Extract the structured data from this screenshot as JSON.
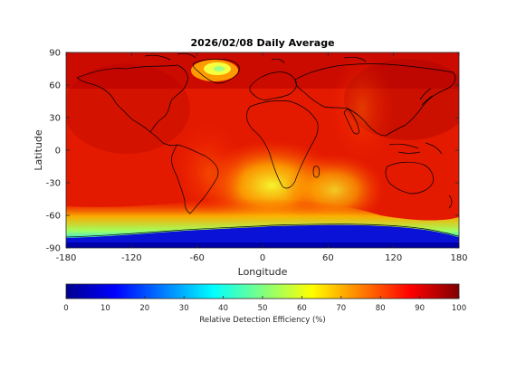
{
  "chart_data": {
    "type": "heatmap",
    "title": "2026/02/08 Daily Average",
    "xlabel": "Longitude",
    "ylabel": "Latitude",
    "xlim": [
      -180,
      180
    ],
    "ylim": [
      -90,
      90
    ],
    "x_ticks": [
      "-180",
      "-120",
      "-60",
      "0",
      "60",
      "120",
      "180"
    ],
    "y_ticks": [
      "90",
      "60",
      "30",
      "0",
      "-30",
      "-60",
      "-90"
    ],
    "grid": false,
    "colormap": "jet",
    "colorbar": {
      "label": "Relative Detection Efficiency (%)",
      "range": [
        0,
        100
      ],
      "ticks": [
        "0",
        "10",
        "20",
        "30",
        "40",
        "50",
        "60",
        "70",
        "80",
        "90",
        "100"
      ],
      "placement": "bottom"
    },
    "regions": [
      {
        "area": "global background",
        "value": 92
      },
      {
        "area": "Southern Africa / South Atlantic",
        "value": 65
      },
      {
        "area": "Southern Ocean band near 60S",
        "value": 55
      },
      {
        "area": "Antarctica",
        "value": 5
      },
      {
        "area": "Greenland",
        "value": 68
      }
    ],
    "colors": {
      "low": "#00008f",
      "high": "#800000"
    }
  }
}
